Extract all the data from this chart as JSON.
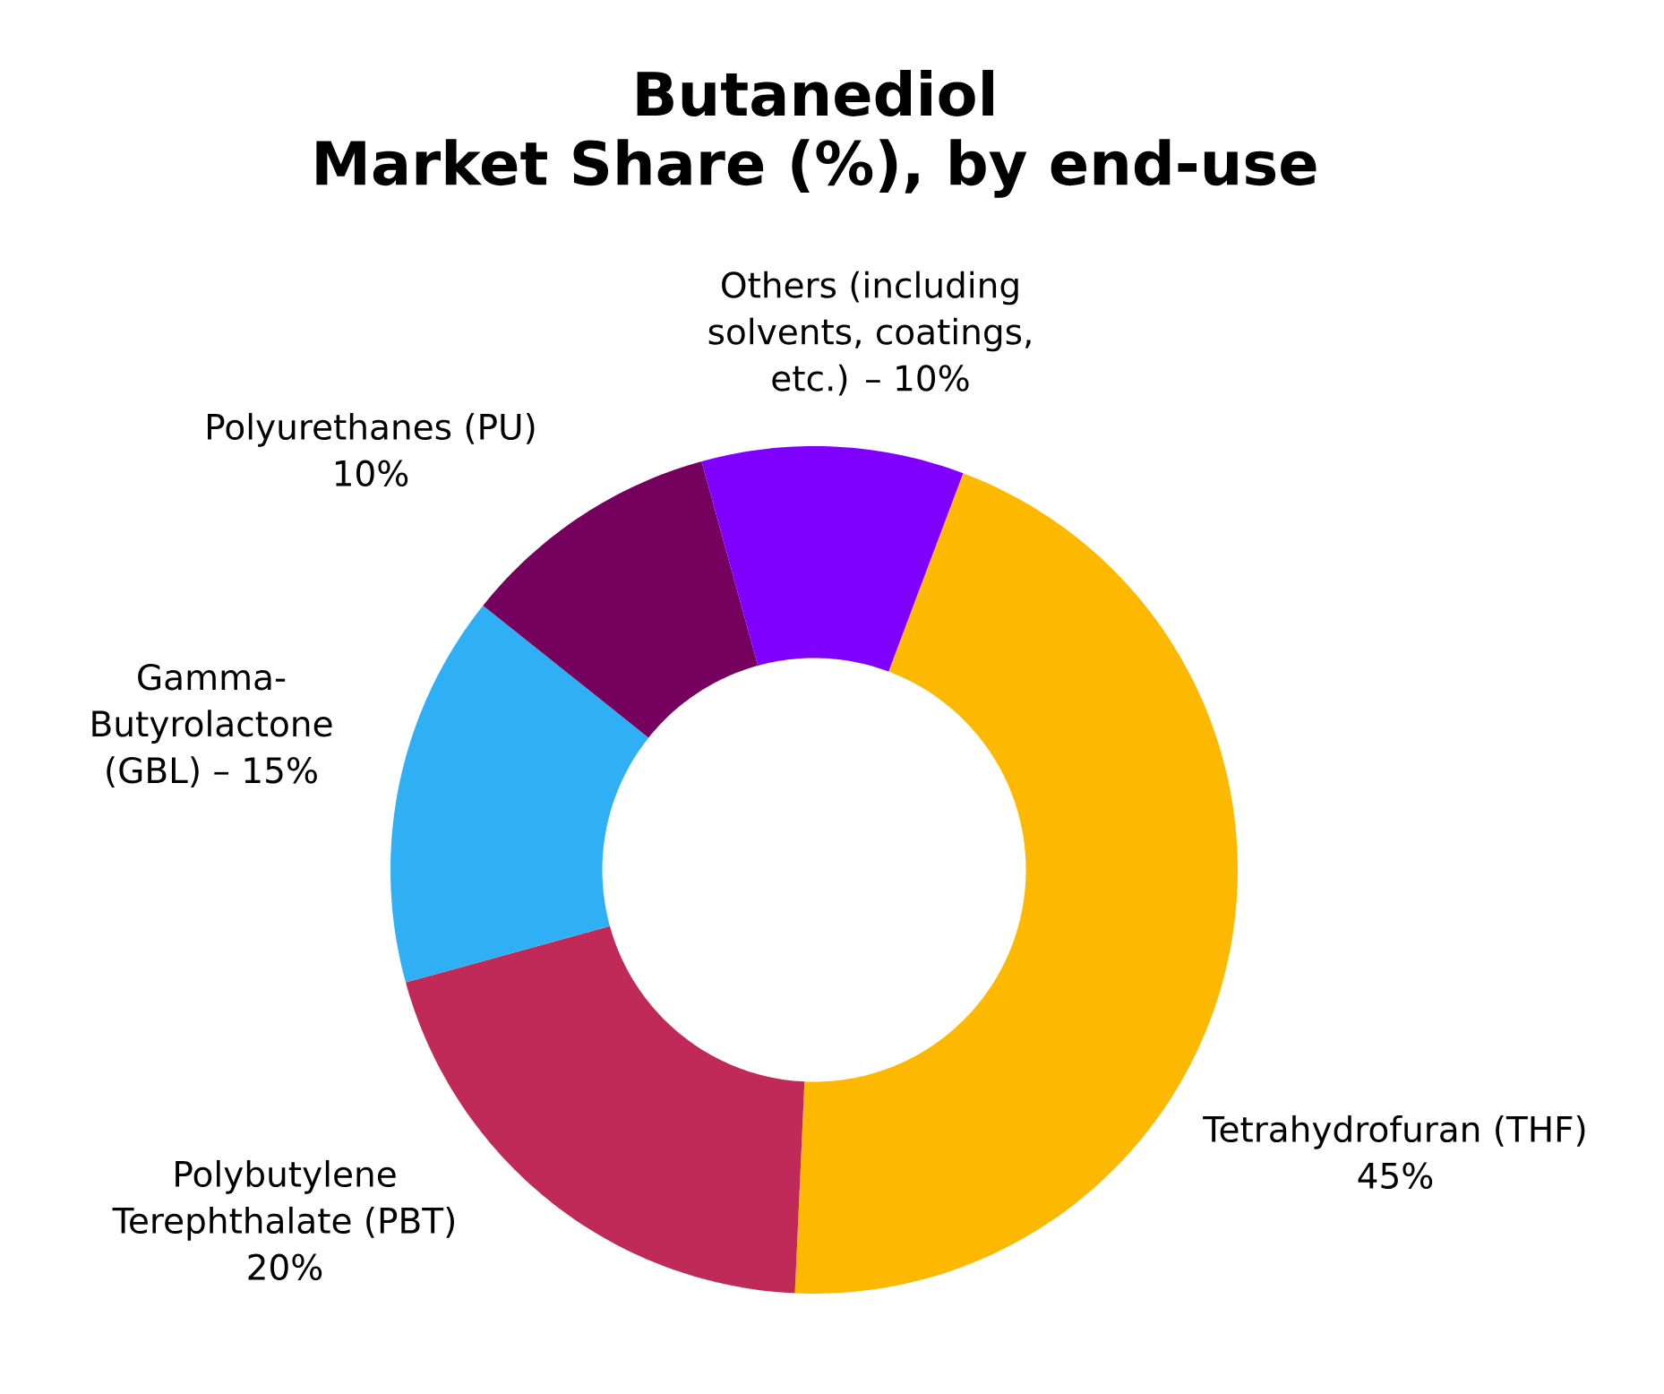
{
  "chart_data": {
    "type": "donut",
    "title": "Butanediol",
    "subtitle": "Market Share (%), by end-use",
    "categories": [
      "Tetrahydrofuran (THF) 45%",
      "Polybutylene Terephthalate (PBT) 20%",
      "Gamma-Butyrolactone (GBL) – 15%",
      "Polyurethanes (PU) 10%",
      "Others (including solvents, coatings, etc.) – 10%"
    ],
    "values": [
      45,
      20,
      15,
      10,
      10
    ],
    "colors": [
      "#FDB900",
      "#BF2A58",
      "#30B0F4",
      "#76005E",
      "#8000FF"
    ]
  }
}
